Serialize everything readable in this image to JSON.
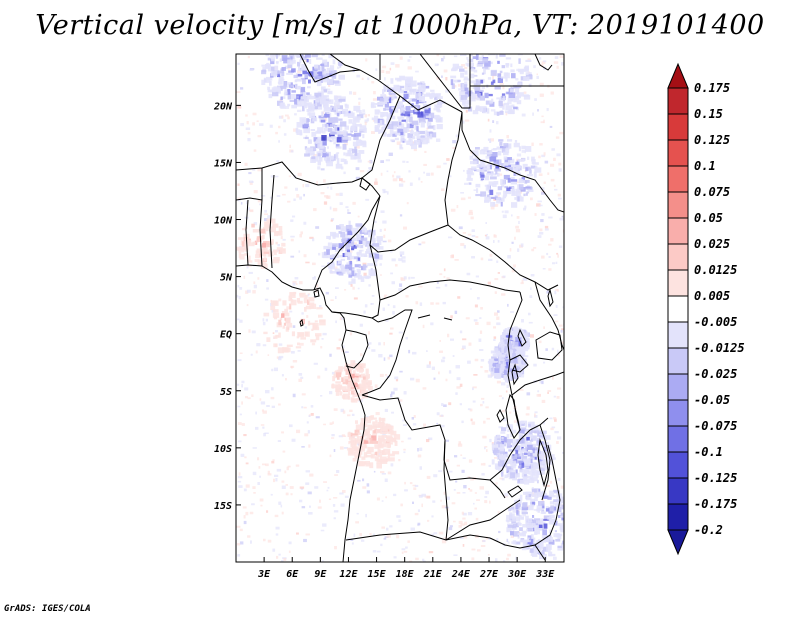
{
  "title": "Vertical velocity [m/s] at 1000hPa, VT: 2019101400",
  "credit": "GrADS: IGES/COLA",
  "lat_ticks": [
    {
      "label": "20N",
      "value": 20
    },
    {
      "label": "15N",
      "value": 15
    },
    {
      "label": "10N",
      "value": 10
    },
    {
      "label": "5N",
      "value": 5
    },
    {
      "label": "EQ",
      "value": 0
    },
    {
      "label": "5S",
      "value": -5
    },
    {
      "label": "10S",
      "value": -10
    },
    {
      "label": "15S",
      "value": -15
    }
  ],
  "lon_ticks": [
    {
      "label": "3E",
      "value": 3
    },
    {
      "label": "6E",
      "value": 6
    },
    {
      "label": "9E",
      "value": 9
    },
    {
      "label": "12E",
      "value": 12
    },
    {
      "label": "15E",
      "value": 15
    },
    {
      "label": "18E",
      "value": 18
    },
    {
      "label": "21E",
      "value": 21
    },
    {
      "label": "24E",
      "value": 24
    },
    {
      "label": "27E",
      "value": 27
    },
    {
      "label": "30E",
      "value": 30
    },
    {
      "label": "33E",
      "value": 33
    }
  ],
  "colorbar": [
    {
      "label": "0.175",
      "color": "#a50f15"
    },
    {
      "label": "0.15",
      "color": "#c0272d"
    },
    {
      "label": "0.125",
      "color": "#d83a3a"
    },
    {
      "label": "0.1",
      "color": "#e5524f"
    },
    {
      "label": "0.075",
      "color": "#ef6f6a"
    },
    {
      "label": "0.05",
      "color": "#f48f8a"
    },
    {
      "label": "0.025",
      "color": "#f9aeab"
    },
    {
      "label": "0.0125",
      "color": "#fccac6"
    },
    {
      "label": "0.005",
      "color": "#fde3e0"
    },
    {
      "label": "-0.005",
      "color": "#ffffff"
    },
    {
      "label": "-0.0125",
      "color": "#e3e3fb"
    },
    {
      "label": "-0.025",
      "color": "#c9c9f7"
    },
    {
      "label": "-0.05",
      "color": "#ababf3"
    },
    {
      "label": "-0.075",
      "color": "#8f8fee"
    },
    {
      "label": "-0.1",
      "color": "#7070e5"
    },
    {
      "label": "-0.125",
      "color": "#5252d9"
    },
    {
      "label": "-0.175",
      "color": "#3838c4"
    },
    {
      "label": "-0.2",
      "color": "#1f1fa8"
    }
  ],
  "colorbar_top_color": "#a50f15",
  "colorbar_bottom_color": "#1a1a9a"
}
